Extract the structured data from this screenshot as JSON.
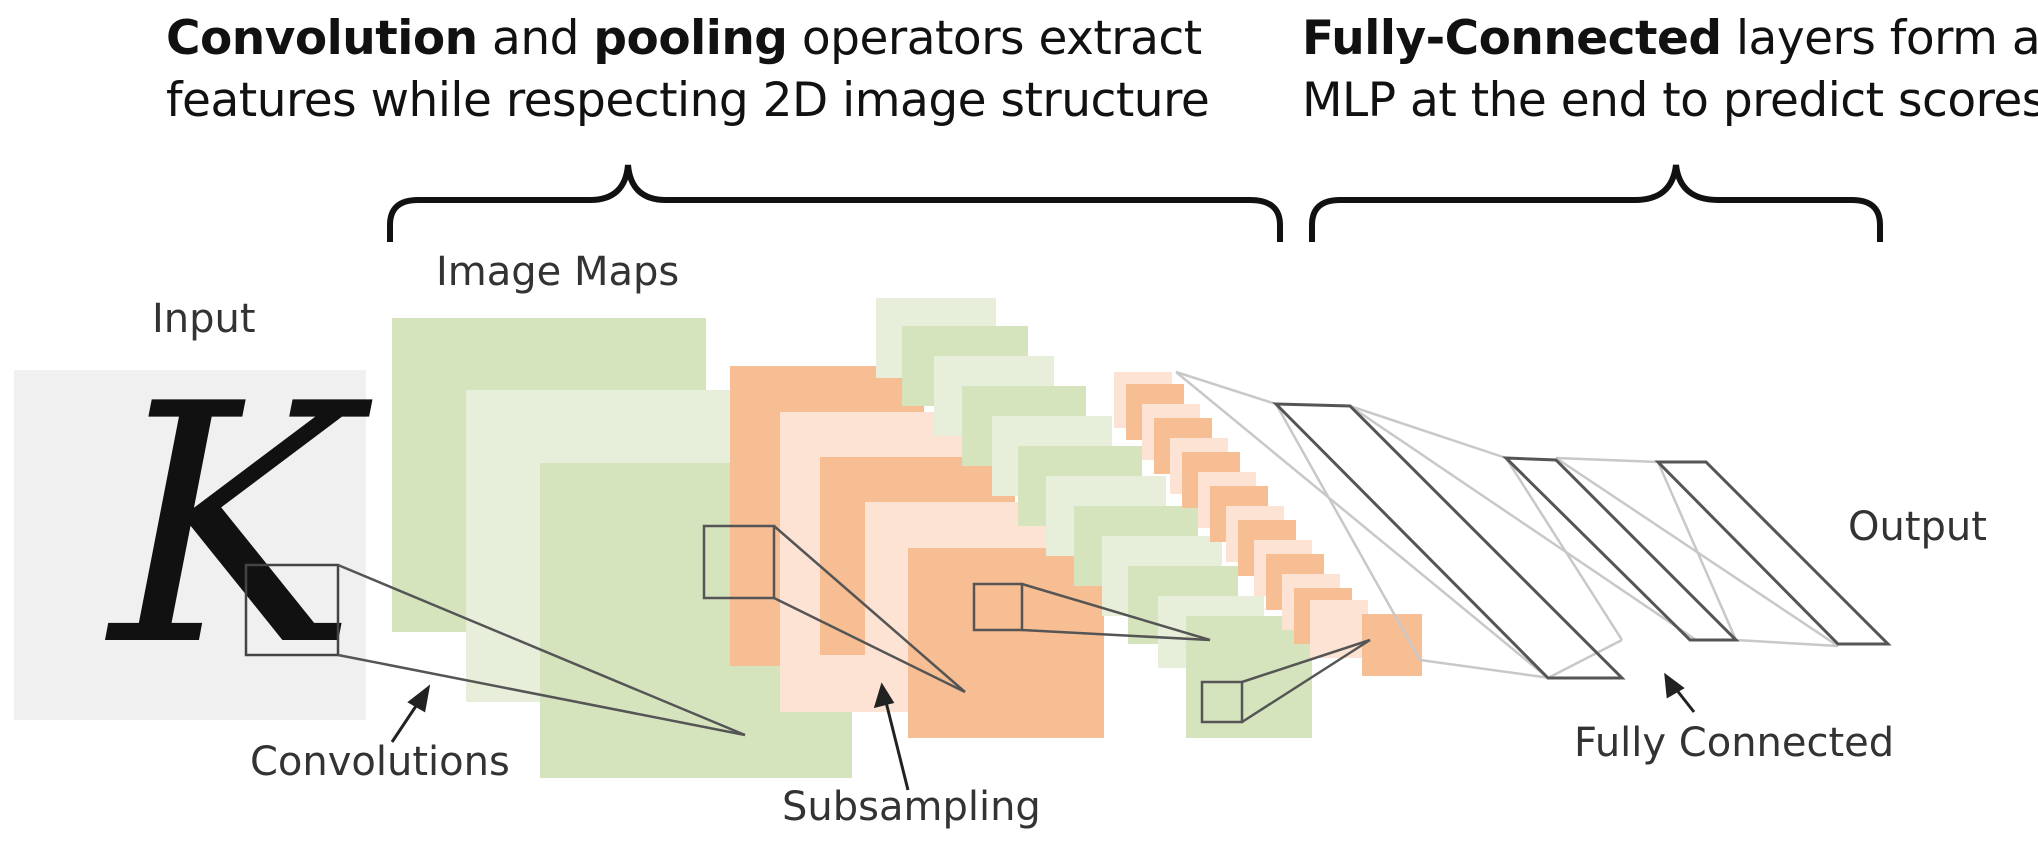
{
  "captions": {
    "left": {
      "bold1": "Convolution",
      "text1": " and ",
      "bold2": "pooling",
      "text2": " operators extract",
      "line2": "features while respecting 2D image structure"
    },
    "right": {
      "bold1": "Fully-Connected",
      "text1": " layers form an",
      "line2": "MLP at the end to predict scores"
    }
  },
  "labels": {
    "input": "Input",
    "input_letter": "K",
    "image_maps": "Image Maps",
    "output": "Output",
    "convolutions": "Convolutions",
    "subsampling": "Subsampling",
    "fully_connected": "Fully Connected"
  },
  "colors": {
    "green": "#d6e4be",
    "green_light": "#e7efdb",
    "orange": "#f8be93",
    "orange_light": "#fde3d3",
    "input_bg": "#f0f0f0",
    "line": "#555555"
  }
}
